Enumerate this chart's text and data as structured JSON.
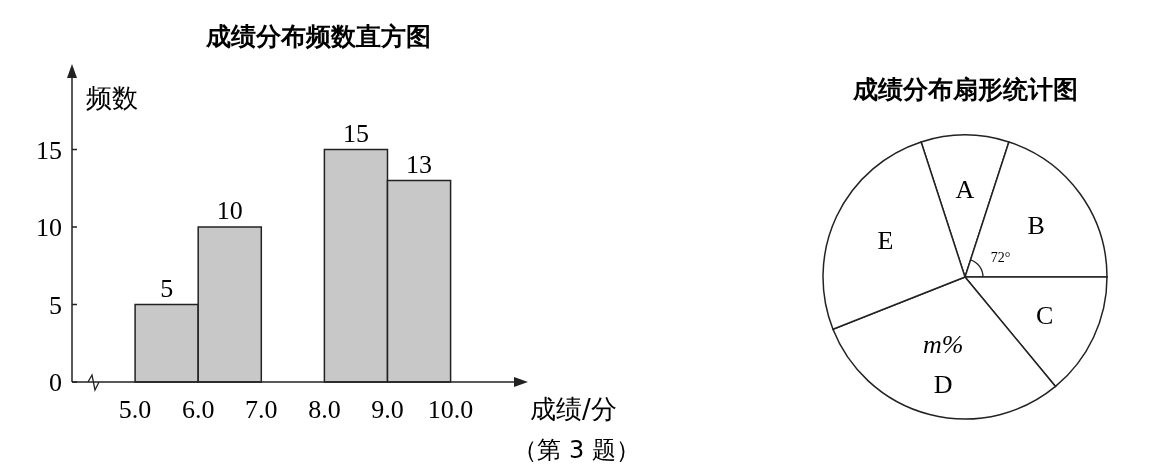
{
  "chart_data": [
    {
      "type": "histogram",
      "title": "成绩分布频数直方图",
      "xlabel": "成绩/分",
      "ylabel": "频数",
      "bins": [
        5,
        6,
        7,
        8,
        9,
        10
      ],
      "values": [
        5,
        10,
        null,
        15,
        13
      ],
      "color": "#c8c8c8",
      "data_labels": true,
      "xlim": [
        4,
        11.1
      ],
      "ylim": [
        0,
        20
      ],
      "xticks": [
        {
          "value": 5,
          "label": "5.0"
        },
        {
          "value": 6,
          "label": "6.0"
        },
        {
          "value": 7,
          "label": "7.0"
        },
        {
          "value": 8,
          "label": "8.0"
        },
        {
          "value": 9,
          "label": "9.0"
        },
        {
          "value": 10,
          "label": "10.0"
        }
      ],
      "yticks": [
        0,
        5,
        10,
        15
      ],
      "grid": false,
      "annotations": [
        "（第 3 题）"
      ]
    },
    {
      "type": "pie",
      "title": "成绩分布扇形统计图",
      "categories": [
        "A",
        "B",
        "C",
        "D",
        "E"
      ],
      "values": [
        10,
        20,
        14,
        30,
        26
      ],
      "colors": [
        "#ffffff",
        "#ffffff",
        "#ffffff",
        "#ffffff",
        "#ffffff"
      ],
      "annotations": [
        {
          "text": "72°",
          "x": "B"
        },
        {
          "text": "m%",
          "x": "D"
        }
      ]
    }
  ]
}
